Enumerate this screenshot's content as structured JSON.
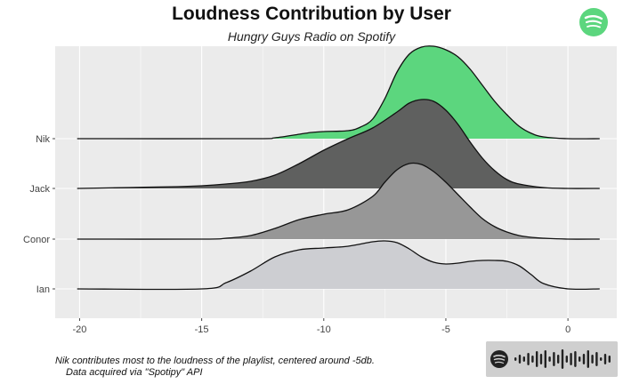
{
  "header": {
    "title": "Loudness Contribution by User",
    "subtitle": "Hungry Guys Radio on Spotify"
  },
  "caption": {
    "line1": "Nik contributes most to the loudness of the playlist, centered around -5db.",
    "line2": "Data acquired via \"Spotipy\" API"
  },
  "icons": {
    "logo": "spotify-logo-icon",
    "code": "spotify-code-icon"
  },
  "colors": {
    "panel": "#ebebeb",
    "grid": "#ffffff",
    "Nik": "#5cd67e",
    "Jack": "#5f605f",
    "Conor": "#979797",
    "Ian": "#cdced2",
    "spotify_green": "#1ed760"
  },
  "chart_data": {
    "type": "ridgeline",
    "title": "Loudness Contribution by User",
    "subtitle": "Hungry Guys Radio on Spotify",
    "xlabel": "",
    "ylabel": "",
    "xlim": [
      -21,
      2
    ],
    "x_ticks": [
      -20,
      -15,
      -10,
      -5,
      0
    ],
    "categories": [
      "Ian",
      "Conor",
      "Jack",
      "Nik"
    ],
    "grid": true,
    "series": [
      {
        "name": "Nik",
        "x": [
          -20.1,
          -13,
          -12,
          -11,
          -10.5,
          -10,
          -9,
          -8.5,
          -8,
          -7.5,
          -7,
          -6.5,
          -6,
          -5.5,
          -5,
          -4.5,
          -4,
          -3.5,
          -3,
          -2.5,
          -2,
          -1.5,
          -1,
          0,
          1.3
        ],
        "density": [
          0,
          0,
          0.01,
          0.05,
          0.07,
          0.08,
          0.09,
          0.13,
          0.22,
          0.45,
          0.75,
          0.95,
          1.03,
          1.04,
          1.0,
          0.92,
          0.78,
          0.6,
          0.42,
          0.27,
          0.14,
          0.06,
          0.02,
          0.0,
          0
        ]
      },
      {
        "name": "Jack",
        "x": [
          -20.1,
          -18,
          -16,
          -15,
          -14,
          -13,
          -12,
          -11,
          -10,
          -9,
          -8,
          -7,
          -6.5,
          -6,
          -5.5,
          -5,
          -4.5,
          -4,
          -3.5,
          -3,
          -2.5,
          -2,
          -1,
          0,
          1.3
        ],
        "density": [
          0,
          0.01,
          0.02,
          0.03,
          0.05,
          0.08,
          0.15,
          0.28,
          0.43,
          0.56,
          0.68,
          0.86,
          0.96,
          1.0,
          0.98,
          0.88,
          0.72,
          0.52,
          0.34,
          0.2,
          0.1,
          0.05,
          0.01,
          0.0,
          0
        ]
      },
      {
        "name": "Conor",
        "x": [
          -20.1,
          -15,
          -14,
          -13,
          -12,
          -11,
          -10,
          -9,
          -8,
          -7.5,
          -7,
          -6.5,
          -6,
          -5.5,
          -5,
          -4.5,
          -4,
          -3.5,
          -3,
          -2.5,
          -2,
          -1.5,
          -1,
          0,
          1.3
        ],
        "density": [
          0,
          0,
          0.01,
          0.04,
          0.12,
          0.22,
          0.28,
          0.33,
          0.48,
          0.64,
          0.78,
          0.85,
          0.84,
          0.76,
          0.64,
          0.5,
          0.36,
          0.23,
          0.14,
          0.08,
          0.04,
          0.02,
          0.01,
          0.0,
          0
        ]
      },
      {
        "name": "Ian",
        "x": [
          -20.1,
          -15,
          -14,
          -13,
          -12,
          -11,
          -10,
          -9,
          -8,
          -7.5,
          -7,
          -6.5,
          -6,
          -5.5,
          -5,
          -4.5,
          -4,
          -3.5,
          -3,
          -2.5,
          -2,
          -1.5,
          -1,
          0,
          1.3
        ],
        "density": [
          0,
          0.0,
          0.07,
          0.2,
          0.36,
          0.44,
          0.46,
          0.48,
          0.53,
          0.54,
          0.52,
          0.45,
          0.36,
          0.3,
          0.28,
          0.29,
          0.31,
          0.32,
          0.32,
          0.31,
          0.26,
          0.16,
          0.06,
          0.0,
          0
        ]
      }
    ]
  }
}
